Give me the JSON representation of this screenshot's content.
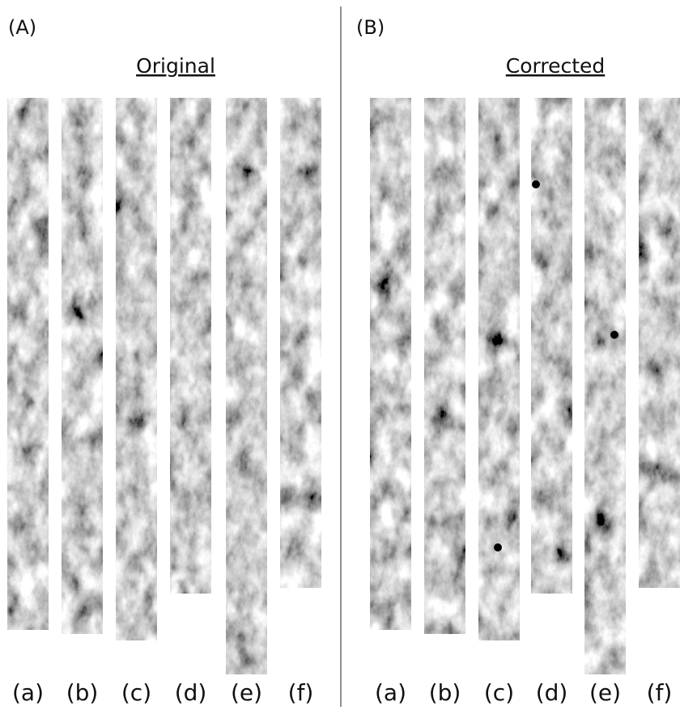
{
  "panels": [
    {
      "label": "(A)",
      "title": "Original",
      "strips": [
        "(a)",
        "(b)",
        "(c)",
        "(d)",
        "(e)",
        "(f)"
      ]
    },
    {
      "label": "(B)",
      "title": "Corrected",
      "strips": [
        "(a)",
        "(b)",
        "(c)",
        "(d)",
        "(e)",
        "(f)"
      ]
    }
  ]
}
